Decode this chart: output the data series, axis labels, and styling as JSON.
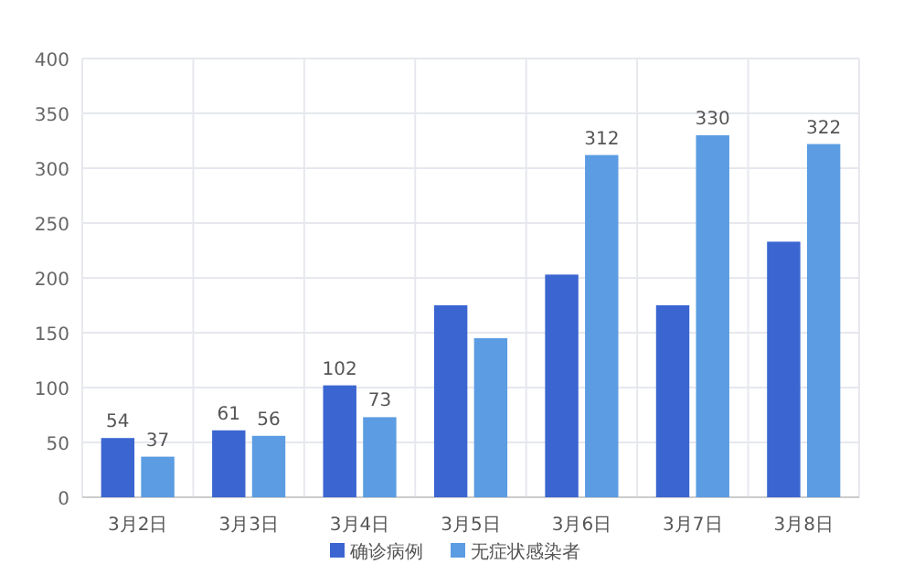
{
  "chart_data": {
    "type": "bar",
    "categories": [
      "3月2日",
      "3月3日",
      "3月4日",
      "3月5日",
      "3月6日",
      "3月7日",
      "3月8日"
    ],
    "series": [
      {
        "name": "确诊病例",
        "color": "#3b66d1",
        "values": [
          54,
          61,
          102,
          175,
          203,
          175,
          233
        ],
        "value_labels": [
          "54",
          "61",
          "102",
          null,
          null,
          null,
          null
        ]
      },
      {
        "name": "无症状感染者",
        "color": "#5b9ce2",
        "values": [
          37,
          56,
          73,
          145,
          312,
          330,
          322
        ],
        "value_labels": [
          "37",
          "56",
          "73",
          null,
          "312",
          "330",
          "322"
        ]
      }
    ],
    "ylim": [
      0,
      400
    ],
    "yticks": [
      0,
      50,
      100,
      150,
      200,
      250,
      300,
      350,
      400
    ],
    "grid": true,
    "legend": "bottom"
  }
}
